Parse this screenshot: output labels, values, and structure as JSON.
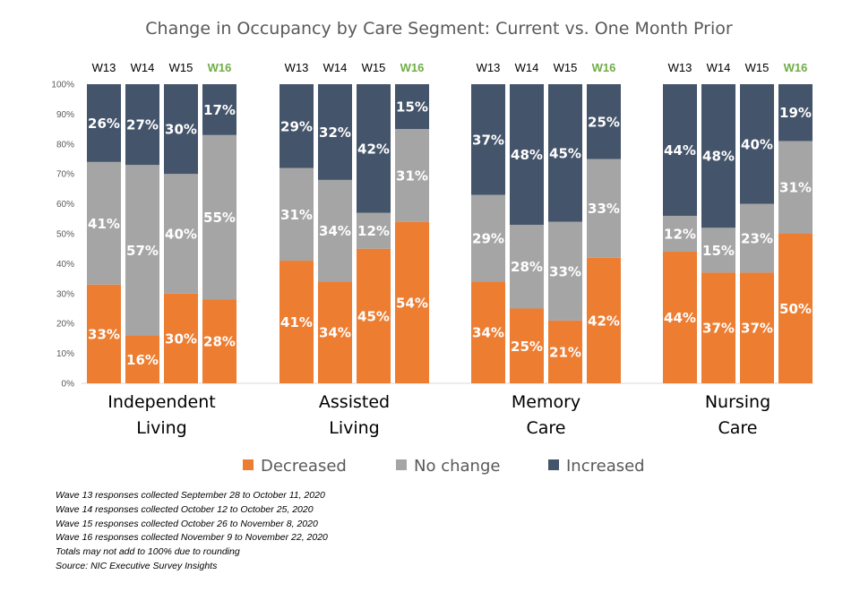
{
  "chart_data": {
    "type": "bar",
    "stacked": true,
    "title": "Change in Occupancy by Care Segment: Current vs. One Month Prior",
    "ylim": [
      0,
      100
    ],
    "y_ticks": [
      "0%",
      "10%",
      "20%",
      "30%",
      "40%",
      "50%",
      "60%",
      "70%",
      "80%",
      "90%",
      "100%"
    ],
    "waves": [
      "W13",
      "W14",
      "W15",
      "W16"
    ],
    "highlight_wave": "W16",
    "highlight_color": "#70ad47",
    "segments": [
      {
        "key": "decreased",
        "name": "Decreased",
        "color": "#ed7d31"
      },
      {
        "key": "no_change",
        "name": "No change",
        "color": "#a5a5a5"
      },
      {
        "key": "increased",
        "name": "Increased",
        "color": "#44546a"
      }
    ],
    "groups": [
      {
        "name_lines": [
          "Independent",
          "Living"
        ],
        "bars": [
          {
            "wave": "W13",
            "decreased": 33,
            "no_change": 41,
            "increased": 26
          },
          {
            "wave": "W14",
            "decreased": 16,
            "no_change": 57,
            "increased": 27
          },
          {
            "wave": "W15",
            "decreased": 30,
            "no_change": 40,
            "increased": 30
          },
          {
            "wave": "W16",
            "decreased": 28,
            "no_change": 55,
            "increased": 17
          }
        ]
      },
      {
        "name_lines": [
          "Assisted",
          "Living"
        ],
        "bars": [
          {
            "wave": "W13",
            "decreased": 41,
            "no_change": 31,
            "increased": 29
          },
          {
            "wave": "W14",
            "decreased": 34,
            "no_change": 34,
            "increased": 32
          },
          {
            "wave": "W15",
            "decreased": 45,
            "no_change": 12,
            "increased": 42
          },
          {
            "wave": "W16",
            "decreased": 54,
            "no_change": 31,
            "increased": 15
          }
        ]
      },
      {
        "name_lines": [
          "Memory",
          "Care"
        ],
        "bars": [
          {
            "wave": "W13",
            "decreased": 34,
            "no_change": 29,
            "increased": 37
          },
          {
            "wave": "W14",
            "decreased": 25,
            "no_change": 28,
            "increased": 48
          },
          {
            "wave": "W15",
            "decreased": 21,
            "no_change": 33,
            "increased": 45
          },
          {
            "wave": "W16",
            "decreased": 42,
            "no_change": 33,
            "increased": 25
          }
        ]
      },
      {
        "name_lines": [
          "Nursing",
          "Care"
        ],
        "bars": [
          {
            "wave": "W13",
            "decreased": 44,
            "no_change": 12,
            "increased": 44
          },
          {
            "wave": "W14",
            "decreased": 37,
            "no_change": 15,
            "increased": 48
          },
          {
            "wave": "W15",
            "decreased": 37,
            "no_change": 23,
            "increased": 40
          },
          {
            "wave": "W16",
            "decreased": 50,
            "no_change": 31,
            "increased": 19
          }
        ]
      }
    ],
    "legend": [
      "Decreased",
      "No change",
      "Increased"
    ],
    "legend_position": "bottom",
    "grid": false
  },
  "footnotes": [
    "Wave 13 responses collected September 28 to October 11, 2020",
    "Wave 14 responses collected October 12 to October 25, 2020",
    "Wave 15 responses collected October 26 to November 8, 2020",
    "Wave 16 responses collected November 9 to November 22, 2020",
    "Totals may not add to 100% due to rounding",
    "Source: NIC Executive Survey Insights"
  ]
}
